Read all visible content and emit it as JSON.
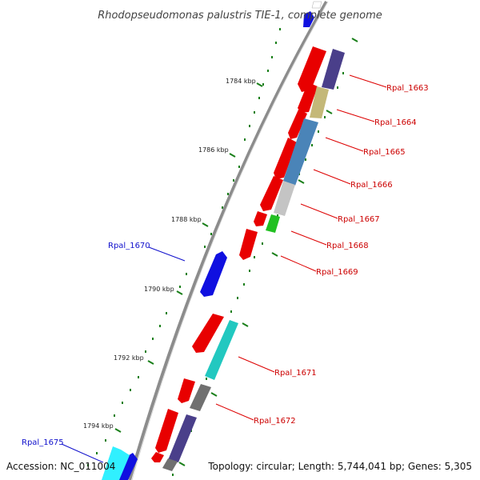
{
  "title": "Rhodopseudomonas palustris TIE-1, complete genome",
  "footer": {
    "accession": "Accession: NC_011004",
    "summary": "Topology: circular; Length: 5,744,041 bp; Genes: 5,305"
  },
  "colors": {
    "backbone": "#8c8c8c",
    "tick": "#1a7f1a",
    "plus_strand_label": "#1010cc",
    "minus_strand_label": "#cc0000"
  },
  "kbp_labels": [
    "1784 kbp",
    "1786 kbp",
    "1788 kbp",
    "1790 kbp",
    "1792 kbp",
    "1794 kbp"
  ],
  "gene_labels": [
    {
      "text": "Rpal_1663",
      "strand": "minus"
    },
    {
      "text": "Rpal_1664",
      "strand": "minus"
    },
    {
      "text": "Rpal_1665",
      "strand": "minus"
    },
    {
      "text": "Rpal_1666",
      "strand": "minus"
    },
    {
      "text": "Rpal_1667",
      "strand": "minus"
    },
    {
      "text": "Rpal_1668",
      "strand": "minus"
    },
    {
      "text": "Rpal_1669",
      "strand": "minus"
    },
    {
      "text": "Rpal_1670",
      "strand": "plus"
    },
    {
      "text": "Rpal_1671",
      "strand": "minus"
    },
    {
      "text": "Rpal_1672",
      "strand": "minus"
    },
    {
      "text": "Rpal_1675",
      "strand": "plus"
    }
  ]
}
